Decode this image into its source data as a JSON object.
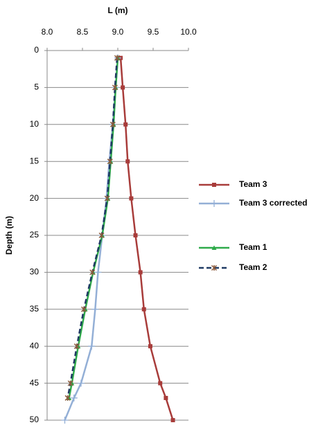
{
  "chart_data": {
    "type": "line",
    "x_label": "L (m)",
    "y_label": "Depth (m)",
    "xlim": [
      8.0,
      10.0
    ],
    "xticks": [
      {
        "value": 8,
        "label": "8.0"
      },
      {
        "value": 8.5,
        "label": "8.5"
      },
      {
        "value": 9,
        "label": "9.0"
      },
      {
        "value": 9.5,
        "label": "9.5"
      },
      {
        "value": 10,
        "label": "10.0"
      }
    ],
    "ylim": [
      0,
      50
    ],
    "y_inverted": true,
    "yticks": [
      0,
      5,
      10,
      15,
      20,
      25,
      30,
      35,
      40,
      45,
      50
    ],
    "grid": true,
    "legend": "right",
    "y": [
      1,
      5,
      10,
      15,
      20,
      25,
      30,
      35,
      40,
      45,
      47,
      50
    ],
    "series": [
      {
        "name": "Team 3",
        "color": "#a83c3a",
        "marker": "square",
        "dash": false,
        "x": [
          9.04,
          9.07,
          9.11,
          9.14,
          9.19,
          9.25,
          9.32,
          9.37,
          9.46,
          9.6,
          9.68,
          9.78
        ]
      },
      {
        "name": "Team 3 corrected",
        "color": "#93afd6",
        "marker": "plus",
        "dash": false,
        "x": [
          9.0,
          8.97,
          8.93,
          8.88,
          8.84,
          8.78,
          8.72,
          8.68,
          8.63,
          8.48,
          8.38,
          8.25
        ]
      },
      {
        "name": "Team 1",
        "color": "#2eaa4a",
        "marker": "triangle",
        "dash": false,
        "x": [
          9.0,
          8.97,
          8.94,
          8.9,
          8.86,
          8.78,
          8.65,
          8.54,
          8.44,
          8.35,
          8.31,
          null
        ]
      },
      {
        "name": "Team 2",
        "color": "#1f3a63",
        "marker": "star",
        "dash": true,
        "x": [
          8.99,
          8.96,
          8.93,
          8.89,
          8.85,
          8.77,
          8.64,
          8.52,
          8.42,
          8.33,
          8.29,
          null
        ]
      }
    ]
  }
}
